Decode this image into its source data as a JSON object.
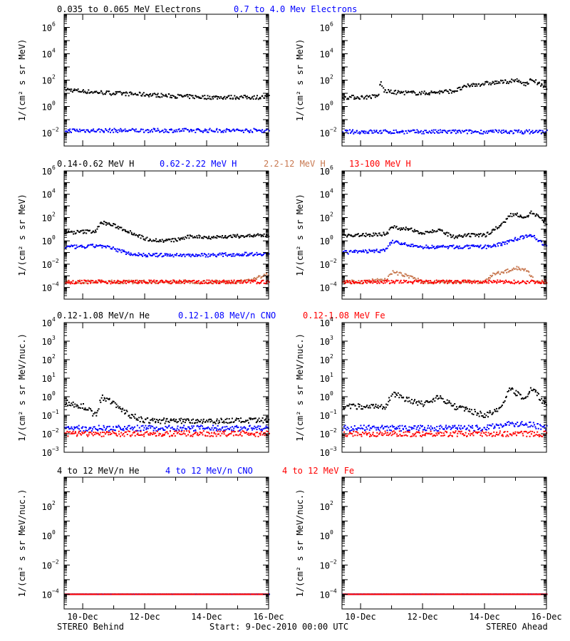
{
  "colors": {
    "black": "#000000",
    "blue": "#0000ff",
    "brown": "#c87850",
    "red": "#ff0000"
  },
  "footer": {
    "left": "STEREO Behind",
    "center": "Start:  9-Dec-2010 00:00 UTC",
    "right": "STEREO Ahead"
  },
  "x_axis": {
    "type": "time",
    "range_days": [
      9.4,
      16.0
    ],
    "tick_labels": [
      "10-Dec",
      "12-Dec",
      "14-Dec",
      "16-Dec"
    ],
    "tick_days": [
      10,
      12,
      14,
      16
    ]
  },
  "rows": [
    {
      "legend": [
        {
          "text": "0.035 to 0.065 MeV Electrons",
          "color": "black"
        },
        {
          "text": "0.7 to 4.0 Mev Electrons",
          "color": "blue"
        }
      ],
      "ylabel": "1/(cm² s sr MeV)",
      "yscale": "log",
      "ylim": [
        0.001,
        10000000
      ],
      "ytick_exponents": [
        -2,
        0,
        2,
        4,
        6
      ]
    },
    {
      "legend": [
        {
          "text": "0.14-0.62 MeV H",
          "color": "black"
        },
        {
          "text": "0.62-2.22 MeV H",
          "color": "blue"
        },
        {
          "text": "2.2-12 MeV H",
          "color": "brown"
        },
        {
          "text": "13-100 MeV H",
          "color": "red"
        }
      ],
      "ylabel": "1/(cm² s sr MeV)",
      "yscale": "log",
      "ylim": [
        1e-05,
        1000000
      ],
      "ytick_exponents": [
        -4,
        -2,
        0,
        2,
        4,
        6
      ]
    },
    {
      "legend": [
        {
          "text": "0.12-1.08 MeV/n He",
          "color": "black"
        },
        {
          "text": "0.12-1.08 MeV/n CNO",
          "color": "blue"
        },
        {
          "text": "0.12-1.08 MeV Fe",
          "color": "red"
        }
      ],
      "ylabel": "1/(cm² s sr MeV/nuc.)",
      "yscale": "log",
      "ylim": [
        0.001,
        10000
      ],
      "ytick_exponents": [
        -3,
        -2,
        -1,
        0,
        1,
        2,
        3,
        4
      ]
    },
    {
      "legend": [
        {
          "text": "4 to 12 MeV/n He",
          "color": "black"
        },
        {
          "text": "4 to 12 MeV/n CNO",
          "color": "blue"
        },
        {
          "text": "4 to 12 MeV Fe",
          "color": "red"
        }
      ],
      "ylabel": "1/(cm² s sr MeV/nuc.)",
      "yscale": "log",
      "ylim": [
        1e-05,
        10000
      ],
      "ytick_exponents": [
        -4,
        -2,
        0,
        2
      ]
    }
  ],
  "chart_data": [
    {
      "type": "scatter",
      "panel": "STEREO Behind",
      "yscale": "log",
      "series": [
        {
          "name": "0.035 to 0.065 MeV Electrons",
          "color": "black",
          "x": [
            9.4,
            10.0,
            11.0,
            12.0,
            13.0,
            14.0,
            15.0,
            16.0
          ],
          "y": [
            20,
            14,
            10,
            8,
            6,
            5,
            5,
            5
          ]
        },
        {
          "name": "0.7 to 4.0 Mev Electrons",
          "color": "blue",
          "x": [
            9.4,
            10.0,
            11.0,
            12.0,
            13.0,
            14.0,
            15.0,
            16.0
          ],
          "y": [
            0.015,
            0.015,
            0.015,
            0.015,
            0.015,
            0.015,
            0.015,
            0.015
          ]
        }
      ]
    },
    {
      "type": "scatter",
      "panel": "STEREO Ahead",
      "yscale": "log",
      "series": [
        {
          "name": "0.035 to 0.065 MeV Electrons",
          "color": "black",
          "x": [
            9.4,
            10.1,
            10.55,
            10.62,
            10.75,
            11.0,
            12.0,
            13.0,
            13.5,
            14.0,
            14.5,
            15.0,
            15.35,
            15.5,
            16.0
          ],
          "y": [
            5,
            5,
            6,
            70,
            15,
            12,
            10,
            15,
            40,
            55,
            70,
            90,
            50,
            120,
            20
          ]
        },
        {
          "name": "0.7 to 4.0 Mev Electrons",
          "color": "blue",
          "x": [
            9.4,
            10.0,
            11.0,
            12.0,
            13.0,
            14.0,
            15.0,
            16.0
          ],
          "y": [
            0.012,
            0.012,
            0.012,
            0.012,
            0.012,
            0.012,
            0.012,
            0.012
          ]
        }
      ]
    },
    {
      "type": "scatter",
      "panel": "STEREO Behind",
      "yscale": "log",
      "series": [
        {
          "name": "0.14-0.62 MeV H",
          "color": "black",
          "x": [
            9.4,
            10.0,
            10.4,
            10.6,
            11.0,
            11.5,
            12.0,
            12.5,
            13.0,
            13.5,
            14.0,
            15.0,
            16.0
          ],
          "y": [
            5,
            6,
            7,
            40,
            20,
            6,
            1.5,
            1.0,
            1.2,
            2.5,
            2.0,
            2.5,
            3
          ]
        },
        {
          "name": "0.62-2.22 MeV H",
          "color": "blue",
          "x": [
            9.4,
            10.0,
            10.5,
            11.0,
            11.5,
            12.0,
            13.0,
            14.0,
            15.0,
            16.0
          ],
          "y": [
            0.3,
            0.3,
            0.4,
            0.2,
            0.08,
            0.06,
            0.06,
            0.06,
            0.07,
            0.08
          ]
        },
        {
          "name": "2.2-12 MeV H",
          "color": "brown",
          "x": [
            9.4,
            10.0,
            12.0,
            14.0,
            15.0,
            15.5,
            16.0
          ],
          "y": [
            0.0003,
            0.0003,
            0.0003,
            0.0003,
            0.0003,
            0.0005,
            0.0015
          ]
        },
        {
          "name": "13-100 MeV H",
          "color": "red",
          "x": [
            9.4,
            10.0,
            12.0,
            14.0,
            16.0
          ],
          "y": [
            0.0003,
            0.0003,
            0.0003,
            0.0003,
            0.0003
          ]
        }
      ]
    },
    {
      "type": "scatter",
      "panel": "STEREO Ahead",
      "yscale": "log",
      "series": [
        {
          "name": "0.14-0.62 MeV H",
          "color": "black",
          "x": [
            9.4,
            10.0,
            10.8,
            11.0,
            11.5,
            12.0,
            12.5,
            13.0,
            13.5,
            14.0,
            14.3,
            14.5,
            14.8,
            15.0,
            15.3,
            15.5,
            16.0
          ],
          "y": [
            3,
            3,
            4,
            15,
            10,
            5,
            8,
            2,
            3,
            3,
            10,
            20,
            150,
            200,
            100,
            300,
            30
          ]
        },
        {
          "name": "0.62-2.22 MeV H",
          "color": "blue",
          "x": [
            9.4,
            10.0,
            10.8,
            11.0,
            11.5,
            12.0,
            13.0,
            14.0,
            14.5,
            15.0,
            15.5,
            16.0
          ],
          "y": [
            0.1,
            0.12,
            0.15,
            1.0,
            0.4,
            0.3,
            0.3,
            0.3,
            0.5,
            1.5,
            3,
            0.3
          ]
        },
        {
          "name": "2.2-12 MeV H",
          "color": "brown",
          "x": [
            9.4,
            10.0,
            10.8,
            11.0,
            11.5,
            12.0,
            14.0,
            14.3,
            14.8,
            15.0,
            15.3,
            15.5,
            15.6,
            16.0
          ],
          "y": [
            0.0003,
            0.0003,
            0.0005,
            0.002,
            0.001,
            0.0003,
            0.0003,
            0.0015,
            0.003,
            0.005,
            0.003,
            0.001,
            0.0003,
            0.0003
          ]
        },
        {
          "name": "13-100 MeV H",
          "color": "red",
          "x": [
            9.4,
            10.0,
            12.0,
            14.0,
            16.0
          ],
          "y": [
            0.0003,
            0.0003,
            0.0003,
            0.0003,
            0.0003
          ]
        }
      ]
    },
    {
      "type": "scatter",
      "panel": "STEREO Behind",
      "yscale": "log",
      "series": [
        {
          "name": "0.12-1.08 MeV/n He",
          "color": "black",
          "x": [
            9.4,
            10.0,
            10.4,
            10.6,
            11.0,
            11.5,
            12.0,
            13.0,
            14.0,
            15.0,
            16.0
          ],
          "y": [
            0.5,
            0.3,
            0.1,
            1.0,
            0.4,
            0.1,
            0.05,
            0.05,
            0.05,
            0.05,
            0.05
          ]
        },
        {
          "name": "0.12-1.08 MeV/n CNO",
          "color": "blue",
          "x": [
            9.4,
            10.0,
            12.0,
            14.0,
            16.0
          ],
          "y": [
            0.02,
            0.02,
            0.02,
            0.02,
            0.02
          ]
        },
        {
          "name": "0.12-1.08 MeV Fe",
          "color": "red",
          "x": [
            9.4,
            10.0,
            12.0,
            14.0,
            16.0
          ],
          "y": [
            0.01,
            0.01,
            0.01,
            0.01,
            0.01
          ]
        }
      ]
    },
    {
      "type": "scatter",
      "panel": "STEREO Ahead",
      "yscale": "log",
      "series": [
        {
          "name": "0.12-1.08 MeV/n He",
          "color": "black",
          "x": [
            9.4,
            10.0,
            10.8,
            11.0,
            11.5,
            12.0,
            12.5,
            13.0,
            14.0,
            14.5,
            14.8,
            15.0,
            15.3,
            15.5,
            16.0
          ],
          "y": [
            0.3,
            0.3,
            0.3,
            1.5,
            0.7,
            0.4,
            1.0,
            0.3,
            0.1,
            0.2,
            3,
            1.5,
            0.8,
            3,
            0.3
          ]
        },
        {
          "name": "0.12-1.08 MeV/n CNO",
          "color": "blue",
          "x": [
            9.4,
            10.0,
            12.0,
            14.0,
            14.7,
            15.0,
            15.3,
            16.0
          ],
          "y": [
            0.02,
            0.02,
            0.02,
            0.02,
            0.035,
            0.03,
            0.035,
            0.02
          ]
        },
        {
          "name": "0.12-1.08 MeV Fe",
          "color": "red",
          "x": [
            9.4,
            10.0,
            12.0,
            14.0,
            16.0
          ],
          "y": [
            0.01,
            0.01,
            0.01,
            0.01,
            0.01
          ]
        }
      ]
    },
    {
      "type": "scatter",
      "panel": "STEREO Behind",
      "yscale": "log",
      "series": [
        {
          "name": "4 to 12 MeV/n He",
          "color": "black",
          "x": [
            9.4,
            10.0,
            12.0,
            14.0,
            16.0
          ],
          "y": [
            0.0001,
            0.0001,
            0.0001,
            0.0001,
            0.0001
          ]
        },
        {
          "name": "4 to 12 MeV/n CNO",
          "color": "blue",
          "x": [
            9.4,
            10.0,
            12.0,
            14.0,
            16.0
          ],
          "y": [
            0.0001,
            0.0001,
            0.0001,
            0.0001,
            0.0001
          ]
        },
        {
          "name": "4 to 12 MeV Fe",
          "color": "red",
          "x": [
            9.4,
            10.0,
            12.0,
            14.0,
            16.0
          ],
          "y": [
            0.0001,
            0.0001,
            0.0001,
            0.0001,
            0.0001
          ]
        }
      ]
    },
    {
      "type": "scatter",
      "panel": "STEREO Ahead",
      "yscale": "log",
      "series": [
        {
          "name": "4 to 12 MeV/n He",
          "color": "black",
          "x": [
            9.4,
            10.0,
            12.0,
            14.0,
            16.0
          ],
          "y": [
            0.0001,
            0.0001,
            0.0001,
            0.0001,
            0.0001
          ]
        },
        {
          "name": "4 to 12 MeV/n CNO",
          "color": "blue",
          "x": [
            9.4,
            10.0,
            12.0,
            14.0,
            16.0
          ],
          "y": [
            0.0001,
            0.0001,
            0.0001,
            0.0001,
            0.0001
          ]
        },
        {
          "name": "4 to 12 MeV Fe",
          "color": "red",
          "x": [
            9.4,
            10.0,
            12.0,
            14.0,
            16.0
          ],
          "y": [
            0.0001,
            0.0001,
            0.0001,
            0.0001,
            0.0001
          ]
        }
      ]
    }
  ]
}
